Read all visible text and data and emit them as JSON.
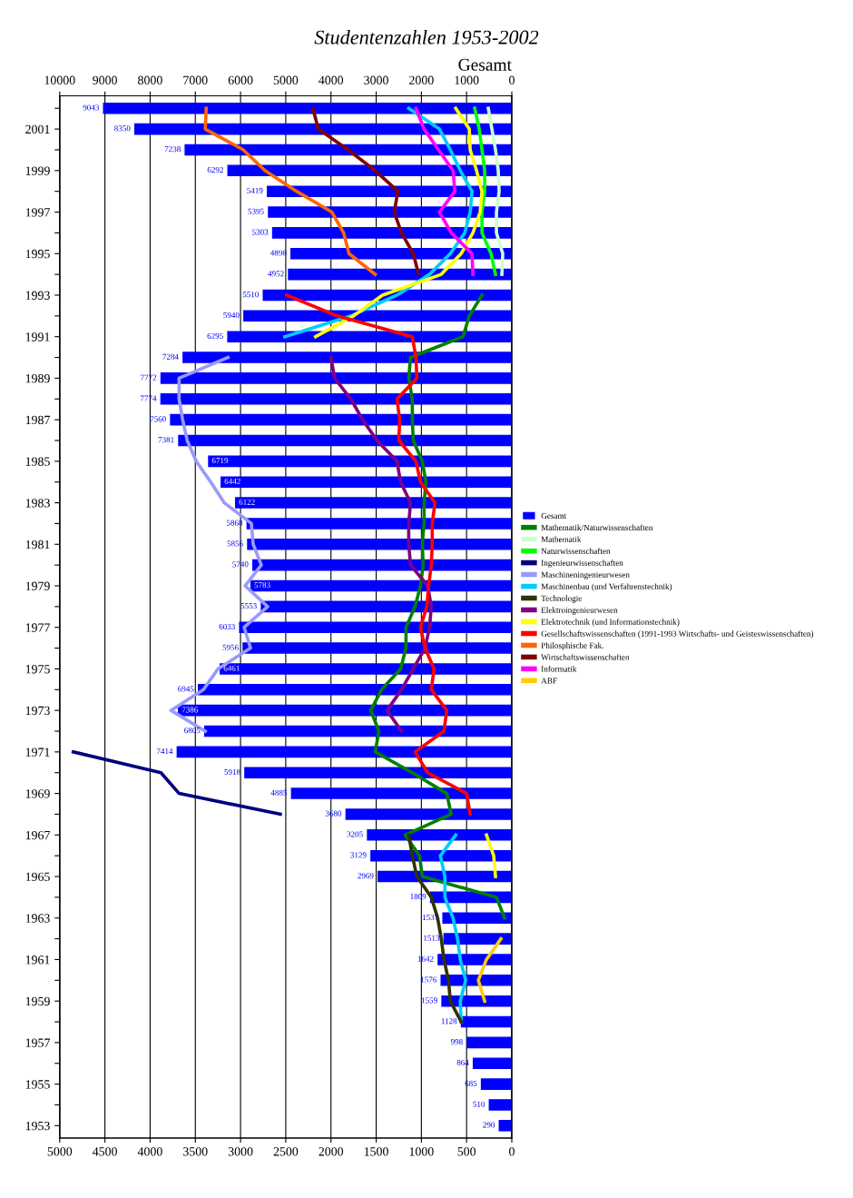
{
  "chart_data": {
    "type": "bar",
    "orientation": "horizontal",
    "title": "Studentenzahlen 1953-2002",
    "x2label": "Gesamt",
    "categories": [
      null,
      "2001",
      null,
      "1999",
      null,
      "1997",
      null,
      "1995",
      null,
      "1993",
      null,
      "1991",
      null,
      "1989",
      null,
      "1987",
      null,
      "1985",
      null,
      "1983",
      null,
      "1981",
      null,
      "1979",
      null,
      "1977",
      null,
      "1975",
      null,
      "1973",
      null,
      "1971",
      null,
      "1969",
      null,
      "1967",
      null,
      "1965",
      null,
      "1963",
      null,
      "1961",
      null,
      "1959",
      null,
      "1957",
      null,
      "1955",
      null,
      "1953"
    ],
    "xlim": [
      5000,
      0
    ],
    "xticks": [
      0,
      500,
      1000,
      1500,
      2000,
      2500,
      3000,
      3500,
      4000,
      4500,
      5000
    ],
    "x2lim": [
      10000,
      0
    ],
    "x2ticks": [
      0,
      1000,
      2000,
      3000,
      4000,
      5000,
      6000,
      7000,
      8000,
      9000,
      10000
    ],
    "grid": "x",
    "legend": "right",
    "series": [
      {
        "name": "Gesamt",
        "axis": "x2",
        "color": "#0000ff",
        "value_labels": [
          "9043",
          "8350",
          "7238",
          "6292",
          "5419",
          "5395",
          "5303",
          "4898",
          "4952",
          "5510",
          "5940",
          "6295",
          "7284",
          "7772",
          "7774",
          "7560",
          "7381",
          "6719",
          "6442",
          "6122",
          "5868",
          "5856",
          "5740",
          "5783",
          "5553",
          "6033",
          "5956",
          "6461",
          "6945",
          "7386",
          "6805",
          "7414",
          "5918",
          "4885",
          "3680",
          "3205",
          "3129",
          "2969",
          "1809",
          "1537",
          "1513",
          "1642",
          "1576",
          "1559",
          "1128",
          "998",
          "864",
          "685",
          "510",
          "290"
        ],
        "values": [
          9043,
          8350,
          7238,
          6292,
          5419,
          5395,
          5303,
          4898,
          4952,
          5510,
          5940,
          6295,
          7284,
          7772,
          7774,
          7560,
          7381,
          6719,
          6442,
          6122,
          5868,
          5856,
          5740,
          5783,
          5553,
          6033,
          5956,
          6461,
          6945,
          7386,
          6805,
          7414,
          5918,
          4885,
          3680,
          3205,
          3129,
          2969,
          1809,
          1537,
          1513,
          1642,
          1576,
          1559,
          1128,
          998,
          864,
          685,
          510,
          290
        ]
      },
      {
        "name": "Mathematik/Naturwissenschaften",
        "type": "line",
        "color": "#008000",
        "values": [
          null,
          null,
          null,
          null,
          null,
          null,
          null,
          null,
          null,
          330,
          470,
          540,
          1120,
          1140,
          1100,
          1100,
          1090,
          990,
          950,
          970,
          970,
          990,
          980,
          1010,
          1070,
          1170,
          1170,
          1230,
          1440,
          1560,
          1470,
          1510,
          1100,
          720,
          670,
          1180,
          1020,
          990,
          170,
          80,
          null,
          null,
          null,
          null,
          null,
          null,
          null,
          null,
          null,
          null
        ]
      },
      {
        "name": "Mathematik",
        "type": "line",
        "color": "#ccffcc",
        "values": [
          260,
          220,
          180,
          150,
          140,
          170,
          170,
          100,
          110,
          null,
          null,
          null,
          null,
          null,
          null,
          null,
          null,
          null,
          null,
          null,
          null,
          null,
          null,
          null,
          null,
          null,
          null,
          null,
          null,
          null,
          null,
          null,
          null,
          null,
          null,
          null,
          null,
          null,
          null,
          null,
          null,
          null,
          null,
          null,
          null,
          null,
          null,
          null,
          null,
          null
        ]
      },
      {
        "name": "Naturwissenschaften",
        "type": "line",
        "color": "#00ff00",
        "values": [
          410,
          360,
          330,
          300,
          300,
          330,
          330,
          230,
          180,
          null,
          null,
          null,
          null,
          null,
          null,
          null,
          null,
          null,
          null,
          null,
          null,
          null,
          null,
          null,
          null,
          null,
          null,
          null,
          null,
          null,
          null,
          null,
          null,
          null,
          null,
          null,
          null,
          null,
          null,
          null,
          null,
          null,
          null,
          null,
          null,
          null,
          null,
          null,
          null,
          null
        ]
      },
      {
        "name": "Ingenieurwissenschaften",
        "type": "line",
        "color": "#000080",
        "values": [
          null,
          null,
          null,
          null,
          null,
          null,
          null,
          null,
          null,
          null,
          null,
          null,
          null,
          null,
          null,
          null,
          null,
          null,
          null,
          null,
          null,
          null,
          null,
          null,
          null,
          null,
          null,
          null,
          null,
          null,
          null,
          4850,
          3880,
          3680,
          2560,
          null,
          null,
          null,
          null,
          null,
          null,
          null,
          null,
          null,
          null,
          null,
          null,
          null,
          null,
          null
        ]
      },
      {
        "name": "Maschineningenieurwesen",
        "type": "line",
        "color": "#9999ff",
        "values": [
          null,
          null,
          null,
          null,
          null,
          null,
          null,
          null,
          null,
          null,
          null,
          null,
          3140,
          3680,
          3680,
          3640,
          3590,
          3490,
          3330,
          3180,
          2880,
          2860,
          2770,
          2950,
          2700,
          2960,
          2890,
          3250,
          3410,
          3770,
          3390,
          null,
          null,
          null,
          null,
          null,
          null,
          null,
          null,
          null,
          null,
          null,
          null,
          null,
          null,
          null,
          null,
          null,
          null,
          null
        ]
      },
      {
        "name": "Maschinenbau (und Verfahrenstechnik)",
        "type": "line",
        "color": "#00ccff",
        "values": [
          1140,
          800,
          680,
          570,
          440,
          460,
          520,
          680,
          910,
          1270,
          1780,
          2510,
          null,
          null,
          null,
          null,
          null,
          null,
          null,
          null,
          null,
          null,
          null,
          null,
          null,
          null,
          null,
          null,
          null,
          null,
          null,
          null,
          null,
          null,
          null,
          620,
          790,
          740,
          740,
          650,
          600,
          570,
          510,
          570,
          560,
          null,
          null,
          null,
          null,
          null
        ]
      },
      {
        "name": "Technologie",
        "type": "line",
        "color": "#333300",
        "values": [
          null,
          null,
          null,
          null,
          null,
          null,
          null,
          null,
          null,
          null,
          null,
          null,
          null,
          null,
          null,
          null,
          null,
          null,
          null,
          null,
          null,
          null,
          null,
          null,
          null,
          null,
          null,
          null,
          null,
          null,
          null,
          null,
          null,
          null,
          null,
          1140,
          1100,
          1050,
          890,
          820,
          780,
          750,
          700,
          680,
          560,
          null,
          null,
          null,
          null,
          null
        ]
      },
      {
        "name": "Elektroingenieurwesen",
        "type": "line",
        "color": "#800080",
        "values": [
          null,
          null,
          null,
          null,
          null,
          null,
          null,
          null,
          null,
          null,
          null,
          null,
          2000,
          1960,
          1780,
          1650,
          1490,
          1270,
          1230,
          1120,
          1140,
          1140,
          1120,
          930,
          890,
          910,
          960,
          1090,
          1220,
          1380,
          1220,
          null,
          null,
          null,
          null,
          null,
          null,
          null,
          null,
          null,
          null,
          null,
          null,
          null,
          null,
          null,
          null,
          null,
          null,
          null
        ]
      },
      {
        "name": "Elektrotechnik (und Informationstechnik)",
        "type": "line",
        "color": "#ffff00",
        "values": [
          620,
          470,
          460,
          390,
          330,
          350,
          430,
          560,
          780,
          1430,
          1750,
          2170,
          null,
          null,
          null,
          null,
          null,
          null,
          null,
          null,
          null,
          null,
          null,
          null,
          null,
          null,
          null,
          null,
          null,
          null,
          null,
          null,
          null,
          null,
          null,
          280,
          200,
          180,
          null,
          null,
          null,
          null,
          null,
          null,
          null,
          null,
          null,
          null,
          null,
          null
        ]
      },
      {
        "name": "Gesellschaftswissenschaften (1991-1993 Wirtschafts- und Geisteswissenschaften)",
        "type": "line",
        "color": "#ff0000",
        "values": [
          null,
          null,
          null,
          null,
          null,
          null,
          null,
          null,
          null,
          2490,
          1930,
          1100,
          1060,
          1050,
          1270,
          1240,
          1250,
          1060,
          1010,
          850,
          880,
          880,
          890,
          920,
          940,
          1010,
          960,
          860,
          890,
          720,
          750,
          1070,
          930,
          500,
          460,
          null,
          null,
          null,
          null,
          null,
          null,
          null,
          null,
          null,
          null,
          null,
          null,
          null,
          null,
          null
        ]
      },
      {
        "name": "Philosphische Fak.",
        "type": "line",
        "color": "#ff6600",
        "values": [
          3380,
          3390,
          2970,
          2730,
          2380,
          1990,
          1860,
          1800,
          1510,
          null,
          null,
          null,
          null,
          null,
          null,
          null,
          null,
          null,
          null,
          null,
          null,
          null,
          null,
          null,
          null,
          null,
          null,
          null,
          null,
          null,
          null,
          null,
          null,
          null,
          null,
          null,
          null,
          null,
          null,
          null,
          null,
          null,
          null,
          null,
          null,
          null,
          null,
          null,
          null,
          null
        ]
      },
      {
        "name": "Wirtschaftswissenschaften",
        "type": "line",
        "color": "#800000",
        "values": [
          2200,
          2140,
          1810,
          1510,
          1260,
          1300,
          1220,
          1090,
          1030,
          null,
          null,
          null,
          null,
          null,
          null,
          null,
          null,
          null,
          null,
          null,
          null,
          null,
          null,
          null,
          null,
          null,
          null,
          null,
          null,
          null,
          null,
          null,
          null,
          null,
          null,
          null,
          null,
          null,
          null,
          null,
          null,
          null,
          null,
          null,
          null,
          null,
          null,
          null,
          null,
          null
        ]
      },
      {
        "name": "Informatik",
        "type": "line",
        "color": "#ff00ff",
        "values": [
          1060,
          970,
          810,
          650,
          630,
          800,
          670,
          440,
          430,
          null,
          null,
          null,
          null,
          null,
          null,
          null,
          null,
          null,
          null,
          null,
          null,
          null,
          null,
          null,
          null,
          null,
          null,
          null,
          null,
          null,
          null,
          null,
          null,
          null,
          null,
          null,
          null,
          null,
          null,
          null,
          null,
          null,
          null,
          null,
          null,
          null,
          null,
          null,
          null,
          null
        ]
      },
      {
        "name": "ABF",
        "type": "line",
        "color": "#ffcc00",
        "values": [
          null,
          null,
          null,
          null,
          null,
          null,
          null,
          null,
          null,
          null,
          null,
          null,
          null,
          null,
          null,
          null,
          null,
          null,
          null,
          null,
          null,
          null,
          null,
          null,
          null,
          null,
          null,
          null,
          null,
          null,
          null,
          null,
          null,
          null,
          null,
          null,
          null,
          null,
          null,
          null,
          120,
          280,
          370,
          300,
          null,
          null,
          null,
          null,
          null,
          null
        ]
      }
    ]
  }
}
